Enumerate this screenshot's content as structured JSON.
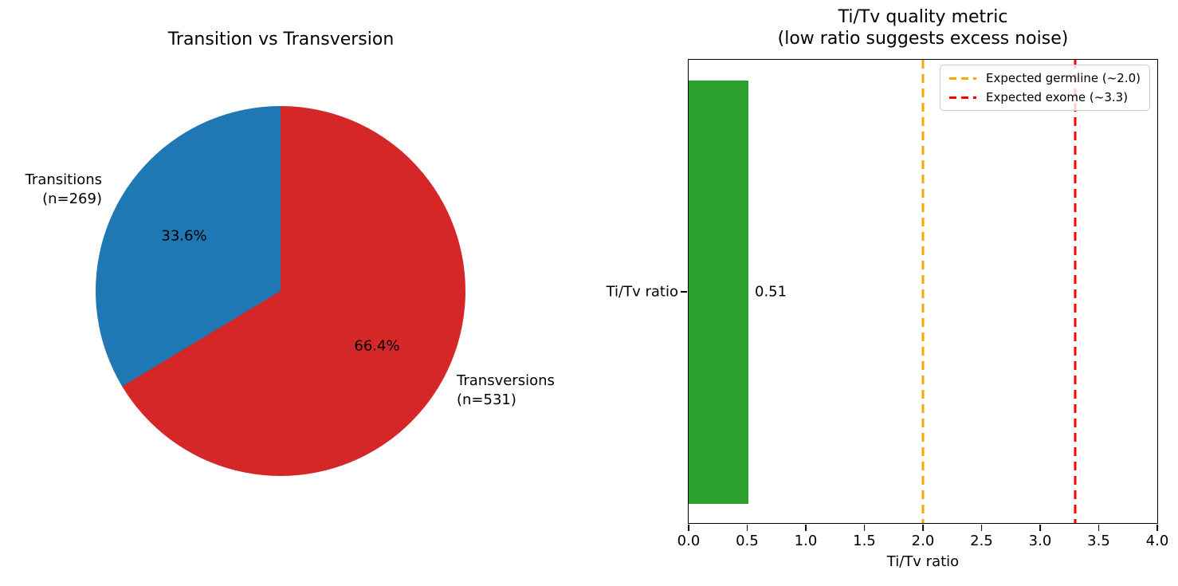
{
  "ui": {
    "pie": {
      "title": "Transition vs Transversion",
      "slices": [
        {
          "line1": "Transitions",
          "line2": "(n=269)",
          "pct": "33.6%"
        },
        {
          "line1": "Transversions",
          "line2": "(n=531)",
          "pct": "66.4%"
        }
      ]
    },
    "bar": {
      "title_line1": "Ti/Tv quality metric",
      "title_line2": "(low ratio suggests excess noise)",
      "ytick_label": "Ti/Tv ratio",
      "value_label": "0.51",
      "xlabel": "Ti/Tv ratio"
    }
  },
  "chart_data": [
    {
      "type": "pie",
      "title": "Transition vs Transversion",
      "labels": [
        "Transitions (n=269)",
        "Transversions (n=531)"
      ],
      "values": [
        269,
        531
      ],
      "percentages": [
        33.6,
        66.4
      ],
      "colors": [
        "#1f77b4",
        "#d62728"
      ],
      "start_angle": 90,
      "counterclock": true,
      "pct_labels": [
        "33.6%",
        "66.4%"
      ]
    },
    {
      "type": "bar",
      "orientation": "horizontal",
      "title": "Ti/Tv quality metric (low ratio suggests excess noise)",
      "categories": [
        "Ti/Tv ratio"
      ],
      "values": [
        0.51
      ],
      "value_labels": [
        "0.51"
      ],
      "bar_color": "#2ca02c",
      "xlabel": "Ti/Tv ratio",
      "xlim": [
        0,
        4
      ],
      "x_ticks": [
        {
          "value": 0.0,
          "label": "0.0"
        },
        {
          "value": 0.5,
          "label": "0.5"
        },
        {
          "value": 1.0,
          "label": "1.0"
        },
        {
          "value": 1.5,
          "label": "1.5"
        },
        {
          "value": 2.0,
          "label": "2.0"
        },
        {
          "value": 2.5,
          "label": "2.5"
        },
        {
          "value": 3.0,
          "label": "3.0"
        },
        {
          "value": 3.5,
          "label": "3.5"
        },
        {
          "value": 4.0,
          "label": "4.0"
        }
      ],
      "reference_lines": [
        {
          "value": 2.0,
          "style": "dashed",
          "color": "#ffa500",
          "label": "Expected germline (~2.0)"
        },
        {
          "value": 3.3,
          "style": "dashed",
          "color": "#ff0000",
          "label": "Expected exome (~3.3)"
        }
      ],
      "legend_position": "upper right",
      "grid": false
    }
  ]
}
